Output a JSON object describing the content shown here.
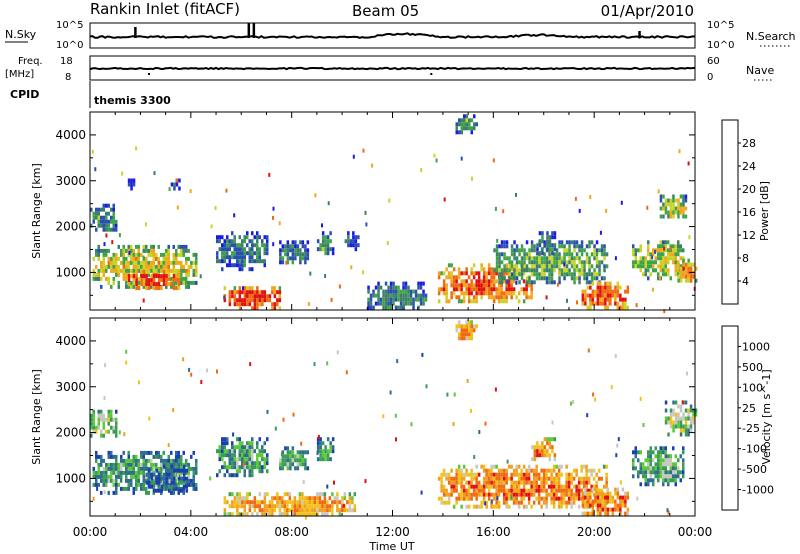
{
  "header": {
    "station": "Rankin Inlet (fitACF)",
    "beam": "Beam 05",
    "date": "01/Apr/2010"
  },
  "status_panels": {
    "nsky_label": "N.Sky",
    "nsearch_label": "N.Search",
    "freq_label_1": "Freq.",
    "freq_label_2": "[MHz]",
    "nave_label": "Nave",
    "cpid_label": "CPID",
    "cpid_value": "themis 3300",
    "noise_left_ticks": [
      "10^5",
      "10^0"
    ],
    "noise_right_ticks": [
      "10^5",
      "10^0"
    ],
    "freq_ticks": [
      "18",
      "8"
    ],
    "nave_ticks": [
      "60",
      "0"
    ]
  },
  "time_axis": {
    "title": "Time UT",
    "ticks": [
      "00:00",
      "04:00",
      "08:00",
      "12:00",
      "16:00",
      "20:00",
      "00:00"
    ]
  },
  "chart_data": [
    {
      "type": "heatmap",
      "parameter": "power",
      "ylabel": "Slant Range [km]",
      "yticks": [
        "1000",
        "2000",
        "3000",
        "4000"
      ],
      "ylim": [
        180,
        4500
      ],
      "xlim_hours": [
        0,
        24
      ],
      "colorbar": {
        "label": "Power [dB]",
        "ticks": [
          "4",
          "8",
          "12",
          "16",
          "20",
          "24",
          "28"
        ],
        "range": [
          0,
          32
        ],
        "colors": [
          "#1a1ae6",
          "#2a4fb0",
          "#3e7f6a",
          "#3fa34a",
          "#c9d42a",
          "#f0a81c",
          "#f06a12",
          "#e01010"
        ]
      },
      "regions": [
        {
          "t": [
            0.0,
            1.0
          ],
          "r": [
            1900,
            2500
          ],
          "level": 0.35
        },
        {
          "t": [
            0.1,
            4.2
          ],
          "r": [
            700,
            1600
          ],
          "level": 0.6
        },
        {
          "t": [
            1.5,
            3.5
          ],
          "r": [
            650,
            1050
          ],
          "level": 0.9
        },
        {
          "t": [
            1.4,
            1.8
          ],
          "r": [
            2800,
            3050
          ],
          "level": 0.15
        },
        {
          "t": [
            3.2,
            3.6
          ],
          "r": [
            2850,
            3050
          ],
          "level": 0.12
        },
        {
          "t": [
            5.0,
            7.0
          ],
          "r": [
            1100,
            1900
          ],
          "level": 0.3
        },
        {
          "t": [
            5.3,
            7.5
          ],
          "r": [
            200,
            700
          ],
          "level": 0.92
        },
        {
          "t": [
            7.5,
            8.6
          ],
          "r": [
            1200,
            1700
          ],
          "level": 0.3
        },
        {
          "t": [
            9.0,
            9.6
          ],
          "r": [
            1400,
            1900
          ],
          "level": 0.35
        },
        {
          "t": [
            10.1,
            10.6
          ],
          "r": [
            1500,
            1900
          ],
          "level": 0.2
        },
        {
          "t": [
            11.0,
            13.3
          ],
          "r": [
            200,
            800
          ],
          "level": 0.3
        },
        {
          "t": [
            13.8,
            17.5
          ],
          "r": [
            400,
            1200
          ],
          "level": 0.8
        },
        {
          "t": [
            16.0,
            20.5
          ],
          "r": [
            800,
            1700
          ],
          "level": 0.45
        },
        {
          "t": [
            17.7,
            18.4
          ],
          "r": [
            1400,
            1900
          ],
          "level": 0.3
        },
        {
          "t": [
            19.5,
            21.3
          ],
          "r": [
            200,
            800
          ],
          "level": 0.85
        },
        {
          "t": [
            21.5,
            23.5
          ],
          "r": [
            900,
            1700
          ],
          "level": 0.55
        },
        {
          "t": [
            23.3,
            24.0
          ],
          "r": [
            800,
            1300
          ],
          "level": 0.75
        },
        {
          "t": [
            22.6,
            23.6
          ],
          "r": [
            2200,
            2700
          ],
          "level": 0.55
        },
        {
          "t": [
            14.5,
            15.3
          ],
          "r": [
            4050,
            4450
          ],
          "level": 0.35
        }
      ]
    },
    {
      "type": "heatmap",
      "parameter": "velocity",
      "ylabel": "Slant Range [km]",
      "yticks": [
        "1000",
        "2000",
        "3000",
        "4000"
      ],
      "ylim": [
        180,
        4500
      ],
      "xlim_hours": [
        0,
        24
      ],
      "colorbar": {
        "label": "Velocity [m s^-1]",
        "ticks": [
          "1000",
          "500",
          "100",
          "25",
          "-25",
          "-100",
          "-500",
          "-1000"
        ],
        "colors": [
          "#1a3fb0",
          "#2f6e8c",
          "#3a9a58",
          "#5cc83a",
          "#c8c8c0",
          "#f2c21a",
          "#f0a020",
          "#f06a12",
          "#e01010"
        ]
      },
      "regions": [
        {
          "t": [
            0.0,
            1.0
          ],
          "r": [
            1900,
            2500
          ],
          "level": 0.45
        },
        {
          "t": [
            0.1,
            4.2
          ],
          "r": [
            700,
            1600
          ],
          "level": 0.3
        },
        {
          "t": [
            2.2,
            3.8
          ],
          "r": [
            750,
            1300
          ],
          "level": 0.1
        },
        {
          "t": [
            5.0,
            7.0
          ],
          "r": [
            1100,
            1900
          ],
          "level": 0.3
        },
        {
          "t": [
            5.3,
            10.5
          ],
          "r": [
            200,
            700
          ],
          "level": 0.72
        },
        {
          "t": [
            7.5,
            8.6
          ],
          "r": [
            1200,
            1700
          ],
          "level": 0.35
        },
        {
          "t": [
            9.0,
            9.6
          ],
          "r": [
            1400,
            1900
          ],
          "level": 0.3
        },
        {
          "t": [
            13.8,
            20.5
          ],
          "r": [
            400,
            1300
          ],
          "level": 0.78
        },
        {
          "t": [
            17.5,
            18.4
          ],
          "r": [
            1400,
            1900
          ],
          "level": 0.75
        },
        {
          "t": [
            19.5,
            21.3
          ],
          "r": [
            200,
            800
          ],
          "level": 0.82
        },
        {
          "t": [
            21.5,
            23.5
          ],
          "r": [
            900,
            1700
          ],
          "level": 0.35
        },
        {
          "t": [
            22.8,
            24.0
          ],
          "r": [
            2000,
            2700
          ],
          "level": 0.45
        },
        {
          "t": [
            14.5,
            15.3
          ],
          "r": [
            4050,
            4450
          ],
          "level": 0.72
        }
      ]
    }
  ]
}
